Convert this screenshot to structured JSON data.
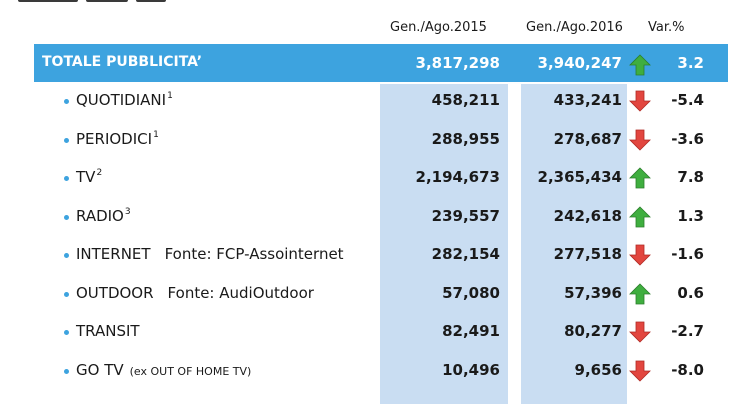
{
  "colors": {
    "header_bar": "#3da3df",
    "column_band": "#c9ddf2",
    "up_arrow": "#3fae3f",
    "down_arrow": "#e2463f"
  },
  "headers": {
    "col2015": "Gen./Ago.2015",
    "col2016": "Gen./Ago.2016",
    "var": "Var.%"
  },
  "total": {
    "label": "TOTALE PUBBLICITA’",
    "v2015": "3,817,298",
    "v2016": "3,940,247",
    "trend": "up",
    "var": "3.2"
  },
  "rows": [
    {
      "name": "QUOTIDIANI",
      "sup": "1",
      "source": "",
      "note": "",
      "v2015": "458,211",
      "v2016": "433,241",
      "trend": "down",
      "var": "-5.4"
    },
    {
      "name": "PERIODICI",
      "sup": "1",
      "source": "",
      "note": "",
      "v2015": "288,955",
      "v2016": "278,687",
      "trend": "down",
      "var": "-3.6"
    },
    {
      "name": "TV",
      "sup": "2",
      "source": "",
      "note": "",
      "v2015": "2,194,673",
      "v2016": "2,365,434",
      "trend": "up",
      "var": "7.8"
    },
    {
      "name": "RADIO",
      "sup": "3",
      "source": "",
      "note": "",
      "v2015": "239,557",
      "v2016": "242,618",
      "trend": "up",
      "var": "1.3"
    },
    {
      "name": "INTERNET",
      "sup": "",
      "source": "Fonte: FCP-Assointernet",
      "note": "",
      "v2015": "282,154",
      "v2016": "277,518",
      "trend": "down",
      "var": "-1.6"
    },
    {
      "name": "OUTDOOR",
      "sup": "",
      "source": "Fonte: AudiOutdoor",
      "note": "",
      "v2015": "57,080",
      "v2016": "57,396",
      "trend": "up",
      "var": "0.6"
    },
    {
      "name": "TRANSIT",
      "sup": "",
      "source": "",
      "note": "",
      "v2015": "82,491",
      "v2016": "80,277",
      "trend": "down",
      "var": "-2.7"
    },
    {
      "name": "GO TV",
      "sup": "",
      "source": "",
      "note": "(ex OUT OF HOME TV)",
      "v2015": "10,496",
      "v2016": "9,656",
      "trend": "down",
      "var": "-8.0"
    }
  ]
}
